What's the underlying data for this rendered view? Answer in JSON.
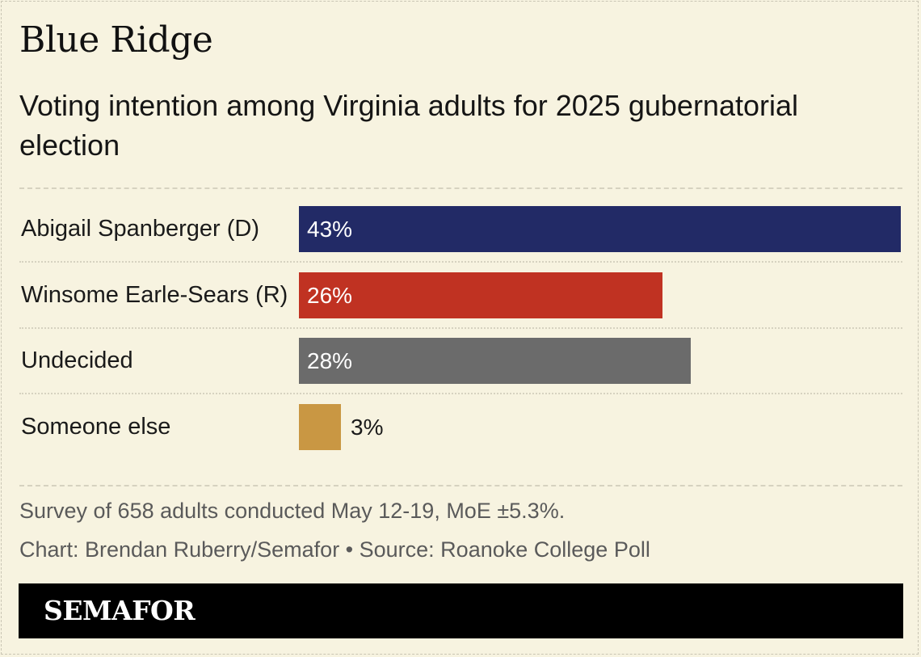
{
  "title": "Blue Ridge",
  "subtitle": "Voting intention among Virginia adults for 2025 gubernatorial election",
  "chart_data": {
    "type": "bar",
    "orientation": "horizontal",
    "categories": [
      "Abigail Spanberger (D)",
      "Winsome Earle-Sears (R)",
      "Undecided",
      "Someone else"
    ],
    "values": [
      43,
      26,
      28,
      3
    ],
    "value_labels": [
      "43%",
      "26%",
      "28%",
      "3%"
    ],
    "colors": [
      "#222a66",
      "#c03222",
      "#6b6b6b",
      "#c99743"
    ],
    "unit": "%",
    "xlim": [
      0,
      43
    ],
    "grid": false,
    "legend": "none"
  },
  "notes": {
    "survey": "Survey of 658 adults conducted May 12-19, MoE ±5.3%.",
    "credit": "Chart: Brendan Ruberry/Semafor • Source: Roanoke College Poll"
  },
  "footer": {
    "brand": "SEMAFOR"
  }
}
